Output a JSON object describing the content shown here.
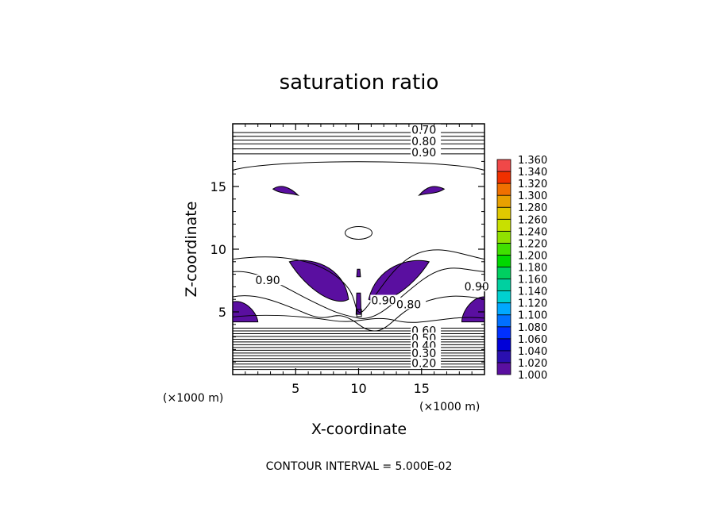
{
  "chart_data": {
    "type": "contour",
    "title": "saturation ratio",
    "xlabel": "X-coordinate",
    "ylabel": "Z-coordinate",
    "x_unit_label": "(×1000 m)",
    "z_unit_label": "(×1000 m)",
    "footer": "CONTOUR INTERVAL = 5.000E-02",
    "xlim": [
      0,
      20
    ],
    "ylim": [
      0,
      20
    ],
    "x_ticks": [
      5,
      10,
      15
    ],
    "y_ticks": [
      5,
      10,
      15
    ],
    "contour_labels": [
      {
        "text": "0.70",
        "x": 14.2,
        "z": 19.2
      },
      {
        "text": "0.80",
        "x": 14.2,
        "z": 18.3
      },
      {
        "text": "0.90",
        "x": 14.2,
        "z": 17.4
      },
      {
        "text": "0.90",
        "x": 1.8,
        "z": 7.2
      },
      {
        "text": "0.90",
        "x": 18.4,
        "z": 6.7
      },
      {
        "text": "0.90",
        "x": 11.0,
        "z": 5.6
      },
      {
        "text": "0.80",
        "x": 13.0,
        "z": 5.3
      },
      {
        "text": "0.60",
        "x": 14.2,
        "z": 3.2
      },
      {
        "text": "0.50",
        "x": 14.2,
        "z": 2.6
      },
      {
        "text": "0.40",
        "x": 14.2,
        "z": 2.0
      },
      {
        "text": "0.30",
        "x": 14.2,
        "z": 1.4
      },
      {
        "text": "0.20",
        "x": 14.2,
        "z": 0.6
      }
    ],
    "colorbar": {
      "levels": [
        "1.000",
        "1.020",
        "1.040",
        "1.060",
        "1.080",
        "1.100",
        "1.120",
        "1.140",
        "1.160",
        "1.180",
        "1.200",
        "1.220",
        "1.240",
        "1.260",
        "1.280",
        "1.300",
        "1.320",
        "1.340",
        "1.360"
      ],
      "colors": [
        "#5a0fa0",
        "#2a0fb0",
        "#0000d8",
        "#0030ff",
        "#0070ff",
        "#00a8ff",
        "#00d0d0",
        "#00d0a0",
        "#00d060",
        "#00d800",
        "#40e000",
        "#90e000",
        "#c8e000",
        "#e0c800",
        "#e8a000",
        "#f07000",
        "#f03000",
        "#f04848",
        "#f49090"
      ]
    },
    "shaded_regions_level": "1.000"
  }
}
